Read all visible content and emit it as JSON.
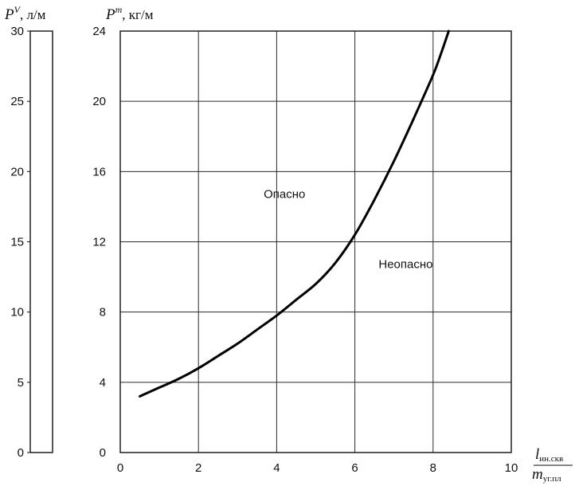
{
  "chart_data": [
    {
      "type": "line",
      "ylabel": {
        "symbol": "P",
        "superscript": "V",
        "unit": ", л/м"
      },
      "ylim": [
        0,
        30
      ],
      "yticks": [
        "0",
        "5",
        "10",
        "15",
        "20",
        "25",
        "30"
      ],
      "grid": false
    },
    {
      "type": "line",
      "xlabel": {
        "numerator": "l",
        "numerator_sub": "ин.скв",
        "denominator": "m",
        "denominator_sub": "уг.пл"
      },
      "ylabel": {
        "symbol": "P",
        "superscript": "m",
        "unit": ", кг/м"
      },
      "xlim": [
        0,
        10
      ],
      "ylim": [
        0,
        24
      ],
      "xticks": [
        "0",
        "2",
        "4",
        "6",
        "8",
        "10"
      ],
      "yticks": [
        "0",
        "4",
        "8",
        "12",
        "16",
        "20",
        "24"
      ],
      "grid": true,
      "annotations": [
        {
          "text": "Опасно",
          "x": 4.2,
          "y": 14.5
        },
        {
          "text": "Неопасно",
          "x": 7.3,
          "y": 10.5
        }
      ],
      "series": [
        {
          "points": [
            [
              0.5,
              3.2
            ],
            [
              1.0,
              3.7
            ],
            [
              1.5,
              4.2
            ],
            [
              2.0,
              4.8
            ],
            [
              2.5,
              5.5
            ],
            [
              3.0,
              6.2
            ],
            [
              3.5,
              7.0
            ],
            [
              4.0,
              7.8
            ],
            [
              4.5,
              8.7
            ],
            [
              5.0,
              9.6
            ],
            [
              5.5,
              10.8
            ],
            [
              6.0,
              12.4
            ],
            [
              6.5,
              14.4
            ],
            [
              7.0,
              16.6
            ],
            [
              7.5,
              19.0
            ],
            [
              8.0,
              21.5
            ],
            [
              8.2,
              22.7
            ],
            [
              8.4,
              24.0
            ]
          ]
        }
      ]
    }
  ]
}
